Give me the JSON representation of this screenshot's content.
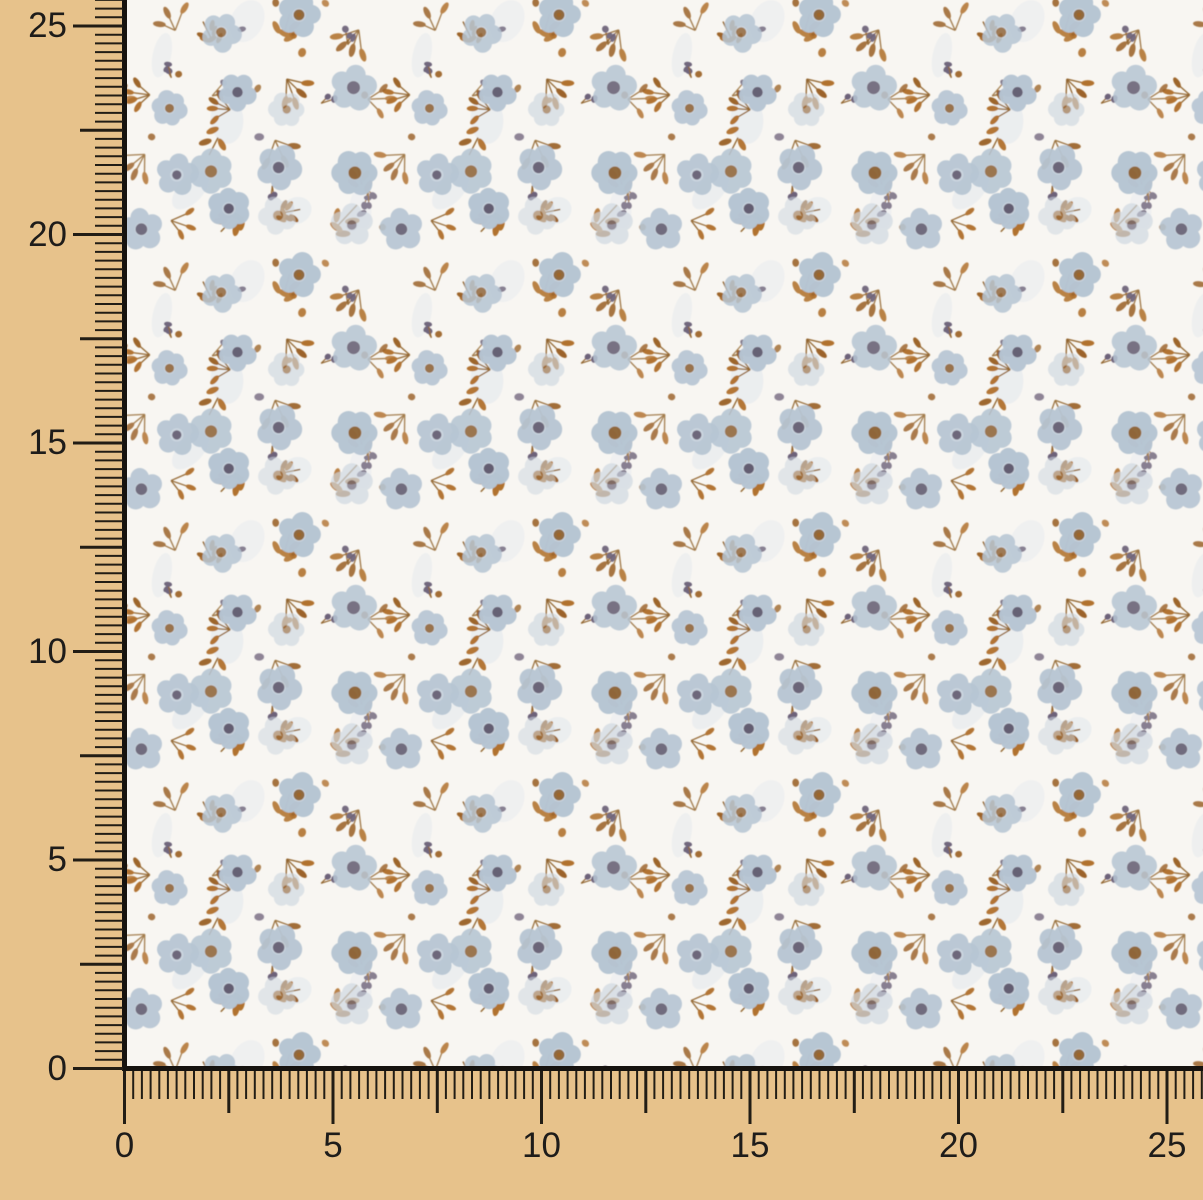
{
  "photo": {
    "description": "White cotton fabric swatch with small light-blue flowers and caramel leaf sprigs, shown on a tan measuring mat with rulers"
  },
  "rulers": {
    "left": {
      "labels": [
        "25",
        "20",
        "15",
        "10",
        "5",
        "0"
      ],
      "values_cm": [
        25,
        20,
        15,
        10,
        5,
        0
      ]
    },
    "bottom": {
      "labels": [
        "0",
        "5",
        "10",
        "15",
        "20",
        "25"
      ],
      "values_cm": [
        0,
        5,
        10,
        15,
        20,
        25
      ]
    }
  },
  "colors": {
    "mat_background": "#e7c28b",
    "tick": "#221d15",
    "label_text": "#1e1c1a",
    "edge_line": "#16130f",
    "fabric_base": "#f8f6f2",
    "petal": "#b6c5d3",
    "petal_pale": "#ced7e0",
    "petal_halo": "#c9d4df",
    "flower_center_purple": "#635d72",
    "flower_center_brown": "#8f653a",
    "leaf": "#b1722f",
    "leaf_dark": "#9c6329",
    "stem": "#92652e",
    "berry": "#6d6279",
    "smudge": "#e1e7ed"
  }
}
